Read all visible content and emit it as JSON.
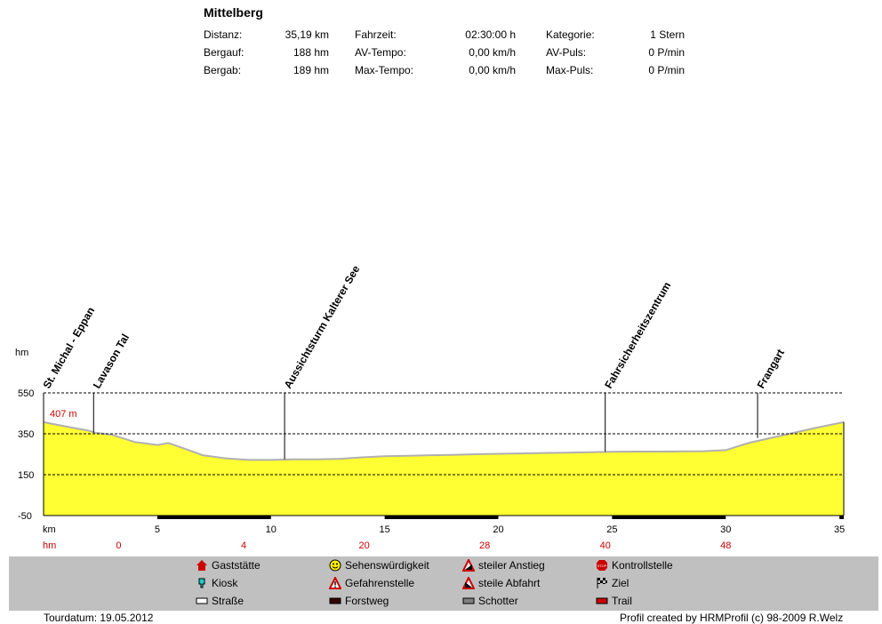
{
  "header": {
    "title": "Mittelberg",
    "stats": [
      {
        "label": "Distanz:",
        "value": "35,19 km"
      },
      {
        "label": "Bergauf:",
        "value": "188 hm"
      },
      {
        "label": "Bergab:",
        "value": "189 hm"
      },
      {
        "label": "Fahrzeit:",
        "value": "02:30:00 h"
      },
      {
        "label": "AV-Tempo:",
        "value": "0,00 km/h"
      },
      {
        "label": "Max-Tempo:",
        "value": "0,00 km/h"
      },
      {
        "label": "Kategorie:",
        "value": "1 Stern"
      },
      {
        "label": "AV-Puls:",
        "value": "0 P/min"
      },
      {
        "label": "Max-Puls:",
        "value": "0 P/min"
      }
    ]
  },
  "chart_data": {
    "type": "area",
    "ylabel": "hm",
    "xlabel": "km",
    "ylim": [
      -50,
      550
    ],
    "xlim": [
      0,
      35.19
    ],
    "y_ticks": [
      550,
      350,
      150,
      -50
    ],
    "x_ticks": [
      5,
      10,
      15,
      20,
      25,
      30,
      35
    ],
    "hm_labels": [
      {
        "km": 3.3,
        "label": "0"
      },
      {
        "km": 8.8,
        "label": "4"
      },
      {
        "km": 14.1,
        "label": "20"
      },
      {
        "km": 19.4,
        "label": "28"
      },
      {
        "km": 24.7,
        "label": "40"
      },
      {
        "km": 30.0,
        "label": "48"
      }
    ],
    "start_label": "407 m",
    "x": [
      0,
      1,
      2,
      2.3,
      3,
      4,
      5,
      5.5,
      6,
      7,
      8,
      9,
      10,
      11,
      12,
      13,
      14,
      15,
      16,
      17,
      18,
      19,
      20,
      21,
      22,
      23,
      24,
      25,
      26,
      27,
      28,
      29,
      30,
      31,
      32,
      33,
      34,
      35.19
    ],
    "y": [
      407,
      385,
      365,
      355,
      345,
      310,
      295,
      305,
      285,
      245,
      230,
      222,
      222,
      225,
      225,
      227,
      235,
      240,
      242,
      245,
      247,
      250,
      252,
      254,
      256,
      258,
      260,
      262,
      263,
      263,
      264,
      265,
      270,
      305,
      330,
      355,
      380,
      407
    ],
    "waypoints": [
      {
        "km": 0.0,
        "label": "St. Michal - Eppan"
      },
      {
        "km": 2.2,
        "label": "Lavason Tal"
      },
      {
        "km": 10.6,
        "label": "Aussichtsturm Kalterer See"
      },
      {
        "km": 24.7,
        "label": "Fahrsicherheitszentrum"
      },
      {
        "km": 31.4,
        "label": "Frangart"
      }
    ],
    "surface_segments": [
      {
        "from": 5.0,
        "to": 10.0,
        "type": "Forstweg"
      },
      {
        "from": 15.0,
        "to": 20.0,
        "type": "Forstweg"
      },
      {
        "from": 25.0,
        "to": 30.0,
        "type": "Forstweg"
      },
      {
        "from": 35.0,
        "to": 35.19,
        "type": "Forstweg"
      }
    ],
    "colors": {
      "fill": "#ffff33",
      "line": "#b0b0b0",
      "red": "#cc0000"
    }
  },
  "legend": [
    {
      "icon": "house-icon",
      "label": "Gaststätte"
    },
    {
      "icon": "kiosk-icon",
      "label": "Kiosk"
    },
    {
      "icon": "road-swatch-icon",
      "label": "Straße"
    },
    {
      "icon": "smiley-icon",
      "label": "Sehenswürdigkeit"
    },
    {
      "icon": "danger-icon",
      "label": "Gefahrenstelle"
    },
    {
      "icon": "forest-road-swatch-icon",
      "label": "Forstweg"
    },
    {
      "icon": "steep-up-icon",
      "label": "steiler Anstieg"
    },
    {
      "icon": "steep-down-icon",
      "label": "steile Abfahrt"
    },
    {
      "icon": "gravel-swatch-icon",
      "label": "Schotter"
    },
    {
      "icon": "stop-icon",
      "label": "Kontrollstelle"
    },
    {
      "icon": "finish-flag-icon",
      "label": "Ziel"
    },
    {
      "icon": "trail-swatch-icon",
      "label": "Trail"
    }
  ],
  "footer": {
    "date": "Tourdatum: 19.05.2012",
    "credit": "Profil created by HRMProfil (c) 98-2009 R.Welz"
  }
}
